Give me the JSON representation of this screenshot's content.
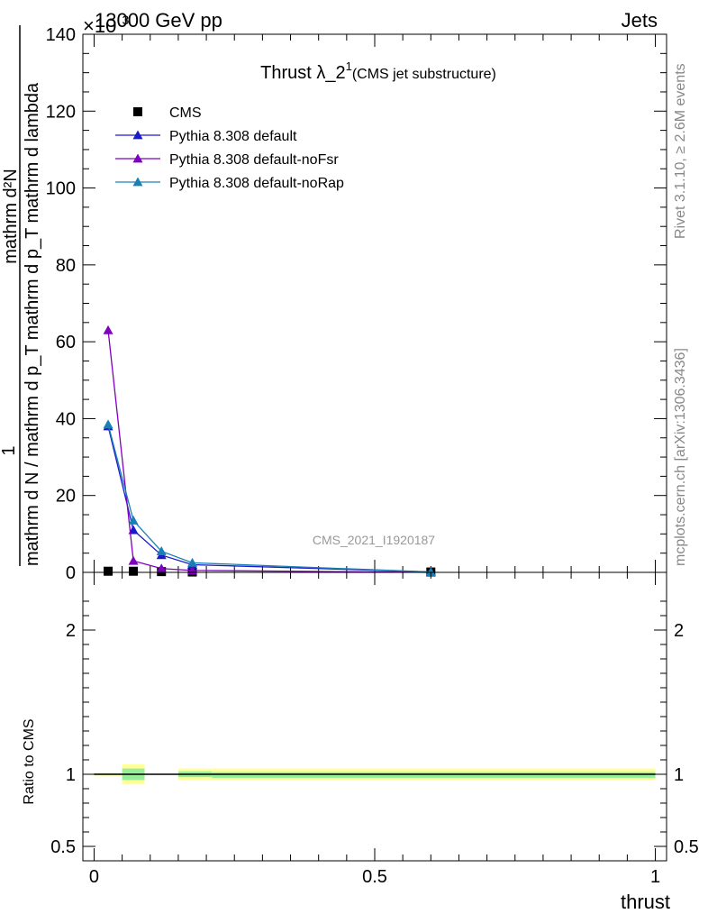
{
  "header": {
    "left": "13000 GeV pp",
    "right": "Jets",
    "exponent": "×10",
    "exponent_power": "3"
  },
  "side_labels": {
    "rivet": "Rivet 3.1.10, ≥ 2.6M events",
    "mcplots": "mcplots.cern.ch [arXiv:1306.3436]"
  },
  "watermark": "CMS_2021_I1920187",
  "chart_data": [
    {
      "type": "line",
      "title": "Thrust λ_2",
      "title_sup": "1",
      "subtitle": "(CMS jet substructure)",
      "ylabel_numerator": "mathrm d²N",
      "ylabel_denominator": "mathrm d N / mathrm d p_T mathrm d p_T mathrm d lambda",
      "ylabel_one": "1",
      "ylim": [
        0,
        140
      ],
      "y_ticks": [
        "0",
        "20",
        "40",
        "60",
        "80",
        "100",
        "120",
        "140"
      ],
      "xlim": [
        -0.02,
        1.02
      ],
      "log_y": false,
      "legend_position": "top-left",
      "series": [
        {
          "name": "CMS",
          "color": "#000000",
          "marker": "square",
          "x": [
            0.025,
            0.07,
            0.12,
            0.175,
            0.6
          ],
          "y": [
            0.3,
            0.3,
            0.2,
            0.1,
            0.1
          ]
        },
        {
          "name": "Pythia 8.308 default",
          "color": "#1a1acc",
          "marker": "triangle",
          "x": [
            0.025,
            0.07,
            0.12,
            0.175,
            0.6
          ],
          "y": [
            38,
            11,
            4.5,
            2,
            0.1
          ]
        },
        {
          "name": "Pythia 8.308 default-noFsr",
          "color": "#8000c0",
          "marker": "triangle",
          "x": [
            0.025,
            0.07,
            0.12,
            0.175,
            0.6
          ],
          "y": [
            63,
            3,
            1,
            0.5,
            0
          ]
        },
        {
          "name": "Pythia 8.308 default-noRap",
          "color": "#1a80b3",
          "marker": "triangle",
          "x": [
            0.025,
            0.07,
            0.12,
            0.175,
            0.6
          ],
          "y": [
            38.5,
            13.5,
            5.5,
            2.5,
            0.1
          ]
        }
      ]
    },
    {
      "type": "area",
      "ylabel": "Ratio to CMS",
      "xlabel": "thrust",
      "ylim": [
        0.4,
        2.4
      ],
      "y_ticks": [
        0.5,
        1,
        2
      ],
      "y_tick_labels": [
        "0.5",
        "1",
        "2"
      ],
      "x_ticks": [
        0,
        0.5,
        1
      ],
      "x_tick_labels": [
        "0",
        "0.5",
        "1"
      ],
      "reference": 1,
      "bands": [
        {
          "x0": 0.0,
          "x1": 0.05,
          "yellow": [
            0.99,
            1.01
          ],
          "green": [
            0.995,
            1.005
          ]
        },
        {
          "x0": 0.05,
          "x1": 0.09,
          "yellow": [
            0.93,
            1.07
          ],
          "green": [
            0.96,
            1.04
          ]
        },
        {
          "x0": 0.15,
          "x1": 0.21,
          "yellow": [
            0.96,
            1.04
          ],
          "green": [
            0.98,
            1.02
          ]
        },
        {
          "x0": 0.21,
          "x1": 1.0,
          "yellow": [
            0.96,
            1.04
          ],
          "green": [
            0.975,
            1.015
          ]
        }
      ],
      "band_colors": {
        "yellow": "#ffff99",
        "green": "#99ee99"
      }
    }
  ]
}
